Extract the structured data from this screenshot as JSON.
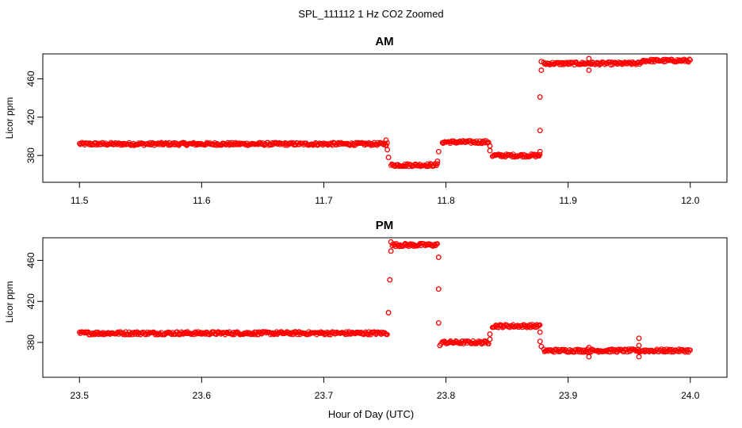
{
  "title": "SPL_111112  1 Hz CO2 Zoomed",
  "xlabel": "Hour of Day (UTC)",
  "chart_data": [
    {
      "type": "scatter",
      "title": "AM",
      "xlabel": "Hour of Day (UTC)",
      "ylabel": "Licor ppm",
      "xlim": [
        11.47,
        12.03
      ],
      "ylim": [
        352,
        486
      ],
      "xticks": [
        "11.5",
        "11.6",
        "11.7",
        "11.8",
        "11.9",
        "12.0"
      ],
      "yticks": [
        "380",
        "420",
        "460"
      ],
      "marker_color": "#ff0000",
      "segments": [
        {
          "x_start": 11.5,
          "x_end": 11.752,
          "y": 392
        },
        {
          "x_start": 11.755,
          "x_end": 11.793,
          "y": 370
        },
        {
          "x_start": 11.797,
          "x_end": 11.835,
          "y": 394
        },
        {
          "x_start": 11.838,
          "x_end": 11.877,
          "y": 380
        },
        {
          "x_start": 11.88,
          "x_end": 11.96,
          "y": 476
        },
        {
          "x_start": 11.96,
          "x_end": 12.0,
          "y": 479
        }
      ],
      "transition_points": [
        {
          "x": 11.751,
          "y": 396
        },
        {
          "x": 11.752,
          "y": 386
        },
        {
          "x": 11.753,
          "y": 378
        },
        {
          "x": 11.793,
          "y": 374
        },
        {
          "x": 11.794,
          "y": 384
        },
        {
          "x": 11.836,
          "y": 390
        },
        {
          "x": 11.836,
          "y": 385
        },
        {
          "x": 11.877,
          "y": 384
        },
        {
          "x": 11.877,
          "y": 406
        },
        {
          "x": 11.877,
          "y": 441
        },
        {
          "x": 11.878,
          "y": 469
        },
        {
          "x": 11.878,
          "y": 478
        },
        {
          "x": 11.917,
          "y": 469
        },
        {
          "x": 11.917,
          "y": 481
        }
      ]
    },
    {
      "type": "scatter",
      "title": "PM",
      "xlabel": "Hour of Day (UTC)",
      "ylabel": "Licor ppm",
      "xlim": [
        23.47,
        24.03
      ],
      "ylim": [
        346,
        482
      ],
      "xticks": [
        "23.5",
        "23.6",
        "23.7",
        "23.8",
        "23.9",
        "24.0"
      ],
      "yticks": [
        "380",
        "420",
        "460"
      ],
      "marker_color": "#ff0000",
      "segments": [
        {
          "x_start": 23.5,
          "x_end": 23.752,
          "y": 389
        },
        {
          "x_start": 23.756,
          "x_end": 23.793,
          "y": 475
        },
        {
          "x_start": 23.796,
          "x_end": 23.835,
          "y": 380
        },
        {
          "x_start": 23.838,
          "x_end": 23.877,
          "y": 396
        },
        {
          "x_start": 23.88,
          "x_end": 24.0,
          "y": 372
        }
      ],
      "transition_points": [
        {
          "x": 23.753,
          "y": 409
        },
        {
          "x": 23.754,
          "y": 441
        },
        {
          "x": 23.755,
          "y": 469
        },
        {
          "x": 23.755,
          "y": 478
        },
        {
          "x": 23.794,
          "y": 463
        },
        {
          "x": 23.794,
          "y": 432
        },
        {
          "x": 23.794,
          "y": 399
        },
        {
          "x": 23.795,
          "y": 377
        },
        {
          "x": 23.836,
          "y": 388
        },
        {
          "x": 23.836,
          "y": 383
        },
        {
          "x": 23.877,
          "y": 390
        },
        {
          "x": 23.877,
          "y": 381
        },
        {
          "x": 23.878,
          "y": 376
        },
        {
          "x": 23.917,
          "y": 366
        },
        {
          "x": 23.917,
          "y": 375
        },
        {
          "x": 23.958,
          "y": 366
        },
        {
          "x": 23.958,
          "y": 377
        },
        {
          "x": 23.958,
          "y": 384
        }
      ]
    }
  ]
}
